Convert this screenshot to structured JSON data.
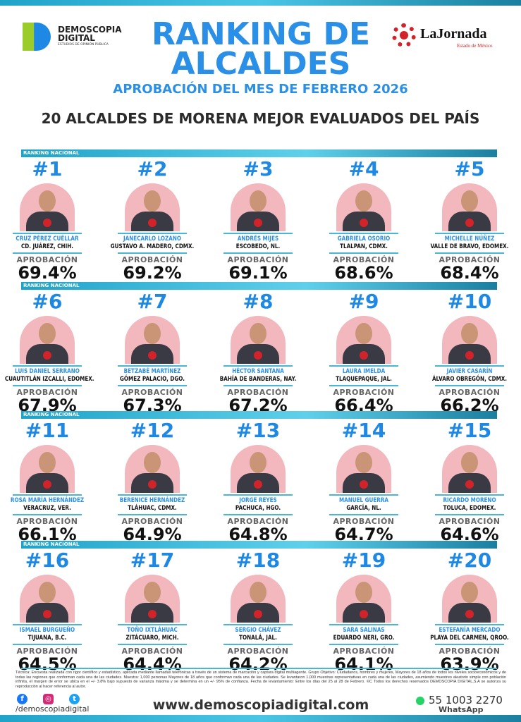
{
  "header": {
    "brand_logo": "DEMOSCOPIA DIGITAL",
    "brand_tagline": "ESTUDIOS DE OPINIÓN PÚBLICA",
    "partner_logo": "LaJornada",
    "partner_sub": "Estado de México",
    "title": "RANKING DE ALCALDES",
    "subtitle": "APROBACIÓN DEL MES DE FEBRERO 2026",
    "heading": "20 ALCALDES DE MORENA MEJOR EVALUADOS DEL PAÍS"
  },
  "section_label": "RANKING NACIONAL",
  "approval_label": "APROBACIÓN",
  "colors": {
    "accent": "#2a8fe6",
    "bar": "#49c6e5",
    "photo_bg": "#f2b8be"
  },
  "mayors": [
    {
      "rank": "#1",
      "name": "CRUZ PÉREZ CUÉLLAR",
      "city": "CD. JUÁREZ, CHIH.",
      "approval": "69.4%"
    },
    {
      "rank": "#2",
      "name": "JANECARLO LOZANO",
      "city": "GUSTAVO A. MADERO, CDMX.",
      "approval": "69.2%"
    },
    {
      "rank": "#3",
      "name": "ANDRÉS MIJES",
      "city": "ESCOBEDO, NL.",
      "approval": "69.1%"
    },
    {
      "rank": "#4",
      "name": "GABRIELA OSORIO",
      "city": "TLALPAN, CDMX.",
      "approval": "68.6%"
    },
    {
      "rank": "#5",
      "name": "MICHELLE NÚÑEZ",
      "city": "VALLE DE BRAVO, EDOMEX.",
      "approval": "68.4%"
    },
    {
      "rank": "#6",
      "name": "LUIS DANIEL SERRANO",
      "city": "CUAUTITLÁN IZCALLI, EDOMEX.",
      "approval": "67.9%"
    },
    {
      "rank": "#7",
      "name": "BETZABÉ MARTÍNEZ",
      "city": "GÓMEZ PALACIO, DGO.",
      "approval": "67.3%"
    },
    {
      "rank": "#8",
      "name": "HÉCTOR SANTANA",
      "city": "BAHÍA DE BANDERAS, NAY.",
      "approval": "67.2%"
    },
    {
      "rank": "#9",
      "name": "LAURA IMELDA",
      "city": "TLAQUEPAQUE, JAL.",
      "approval": "66.4%"
    },
    {
      "rank": "#10",
      "name": "JAVIER CASARÍN",
      "city": "ÁLVARO OBREGÓN, CDMX.",
      "approval": "66.2%"
    },
    {
      "rank": "#11",
      "name": "ROSA MARÍA HERNÁNDEZ",
      "city": "VERACRUZ, VER.",
      "approval": "66.1%"
    },
    {
      "rank": "#12",
      "name": "BERENICE HERNÁNDEZ",
      "city": "TLÁHUAC, CDMX.",
      "approval": "64.9%"
    },
    {
      "rank": "#13",
      "name": "JORGE REYES",
      "city": "PACHUCA, HGO.",
      "approval": "64.8%"
    },
    {
      "rank": "#14",
      "name": "MANUEL GUERRA",
      "city": "GARCÍA, NL.",
      "approval": "64.7%"
    },
    {
      "rank": "#15",
      "name": "RICARDO MORENO",
      "city": "TOLUCA, EDOMEX.",
      "approval": "64.6%"
    },
    {
      "rank": "#16",
      "name": "ISMAEL BURGUEÑO",
      "city": "TIJUANA, B.C.",
      "approval": "64.5%"
    },
    {
      "rank": "#17",
      "name": "TOÑO IXTLÁHUAC",
      "city": "ZITÁCUARO, MICH.",
      "approval": "64.4%"
    },
    {
      "rank": "#18",
      "name": "SERGIO CHÁVEZ",
      "city": "TONALÁ, JAL.",
      "approval": "64.2%"
    },
    {
      "rank": "#19",
      "name": "SARA SALINAS",
      "city": "EDUARDO NERI, GRO.",
      "approval": "64.1%"
    },
    {
      "rank": "#20",
      "name": "ESTEFANÍA MERCADO",
      "city": "PLAYA DEL CARMEN, QROO.",
      "approval": "63.9%"
    }
  ],
  "footer": {
    "technical_note": "Técnica: Encuesta realizada con rigor científico y estadístico, aplicada mediante llamadas telefónicas a través de un sistema de marcación y captura digital multiagente. Grupo Objetivo: Ciudadanos, hombres y mujeres, Mayores de 18 años de todos los niveles socioeconómicos y de todas las regiones que conforman cada una de las ciudades. Muestra: 1,000 personas Mayores de 18 años que conforman cada una de las ciudades. Se levantaron 1,000 muestras representativas en cada una de las ciudades, asumiendo muestreo aleatorio simple con población infinita, el margen de error se ubica en el +/- 3.8% bajo supuesto de varianza máxima y se determina en un +/- 95% de confianza. Fecha de levantamiento: Entre los días del 25 al 28 de Febrero. ©C Todos los derechos reservados DEMOSCOPIA DIGITAL,S.A se autoriza su reproducción al hacer referencia al autor.",
    "social_icons": [
      "facebook-icon",
      "instagram-icon",
      "twitter-icon"
    ],
    "handle": "/demoscopiadigital",
    "website": "www.demoscopiadigital.com",
    "phone": "55 1003 2270",
    "phone_label": "WhatsApp"
  }
}
